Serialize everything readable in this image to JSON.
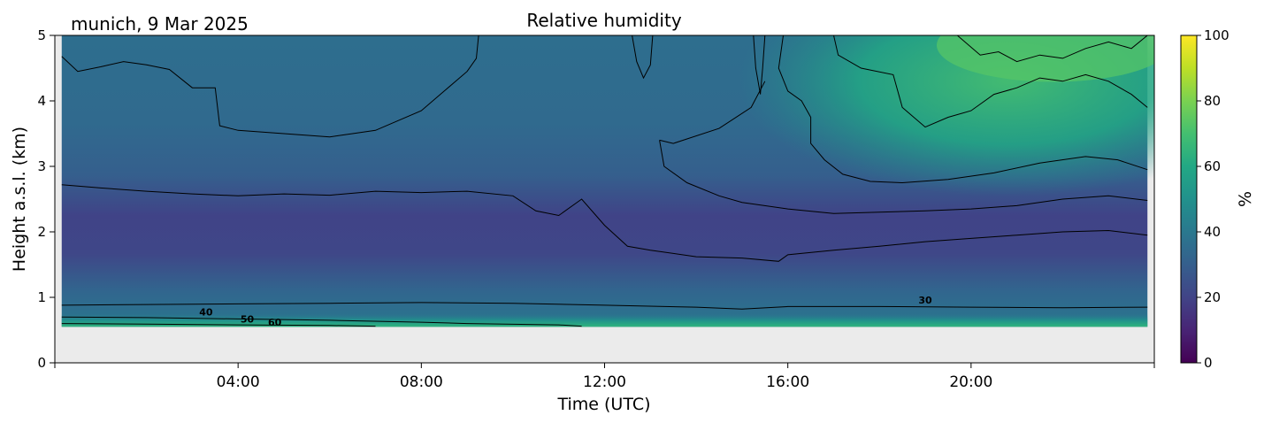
{
  "chart_data": {
    "type": "heatmap",
    "title": "Relative humidity",
    "subtitle": "munich, 9 Mar 2025",
    "xlabel": "Time (UTC)",
    "ylabel": "Height a.s.l. (km)",
    "colorbar_label": "%",
    "colormap": "viridis",
    "xlim_hours": [
      0,
      24
    ],
    "ylim_km": [
      0,
      5
    ],
    "clim": [
      0,
      100
    ],
    "x_ticks": [
      {
        "hour": 4,
        "label": "04:00"
      },
      {
        "hour": 8,
        "label": "08:00"
      },
      {
        "hour": 12,
        "label": "12:00"
      },
      {
        "hour": 16,
        "label": "16:00"
      },
      {
        "hour": 20,
        "label": "20:00"
      }
    ],
    "y_ticks": [
      {
        "value": 0,
        "label": "0"
      },
      {
        "value": 1,
        "label": "1"
      },
      {
        "value": 2,
        "label": "2"
      },
      {
        "value": 3,
        "label": "3"
      },
      {
        "value": 4,
        "label": "4"
      },
      {
        "value": 5,
        "label": "5"
      }
    ],
    "colorbar_ticks": [
      {
        "value": 0,
        "label": "0"
      },
      {
        "value": 20,
        "label": "20"
      },
      {
        "value": 40,
        "label": "40"
      },
      {
        "value": 60,
        "label": "60"
      },
      {
        "value": 80,
        "label": "80"
      },
      {
        "value": 100,
        "label": "100"
      }
    ],
    "data_start_km": 0.55,
    "data_hours": [
      0.15,
      23.85
    ],
    "no_data_color": "#ebebeb",
    "contour_labels": [
      {
        "text": "40",
        "hour": 3.3,
        "km": 0.78
      },
      {
        "text": "50",
        "hour": 4.2,
        "km": 0.67
      },
      {
        "text": "60",
        "hour": 4.8,
        "km": 0.62
      },
      {
        "text": "30",
        "hour": 19.0,
        "km": 0.96
      }
    ],
    "contours": [
      {
        "level": 60,
        "points": [
          [
            0.15,
            0.6
          ],
          [
            2,
            0.59
          ],
          [
            4,
            0.58
          ],
          [
            6,
            0.57
          ],
          [
            7,
            0.56
          ]
        ]
      },
      {
        "level": 50,
        "points": [
          [
            0.15,
            0.7
          ],
          [
            2,
            0.69
          ],
          [
            4,
            0.67
          ],
          [
            6,
            0.65
          ],
          [
            8,
            0.62
          ],
          [
            9,
            0.6
          ],
          [
            11,
            0.58
          ],
          [
            11.5,
            0.56
          ]
        ]
      },
      {
        "level": 40,
        "points": [
          [
            0.15,
            0.88
          ],
          [
            2,
            0.89
          ],
          [
            4,
            0.9
          ],
          [
            6,
            0.91
          ],
          [
            8,
            0.92
          ],
          [
            10,
            0.91
          ],
          [
            12,
            0.88
          ],
          [
            14,
            0.85
          ],
          [
            15,
            0.82
          ],
          [
            16,
            0.86
          ],
          [
            18,
            0.86
          ],
          [
            20,
            0.85
          ],
          [
            22,
            0.84
          ],
          [
            23.85,
            0.85
          ]
        ]
      },
      {
        "level": 30,
        "points": [
          [
            0.15,
            2.72
          ],
          [
            1,
            2.67
          ],
          [
            2,
            2.62
          ],
          [
            3,
            2.58
          ],
          [
            4,
            2.55
          ],
          [
            5,
            2.58
          ],
          [
            6,
            2.56
          ],
          [
            7,
            2.62
          ],
          [
            8,
            2.6
          ],
          [
            9,
            2.62
          ],
          [
            10,
            2.55
          ],
          [
            10.5,
            2.32
          ],
          [
            11,
            2.25
          ],
          [
            11.5,
            2.5
          ],
          [
            12,
            2.1
          ],
          [
            12.5,
            1.78
          ],
          [
            13,
            1.72
          ],
          [
            14,
            1.62
          ],
          [
            15,
            1.6
          ],
          [
            15.8,
            1.55
          ],
          [
            16,
            1.65
          ],
          [
            17,
            1.72
          ],
          [
            18,
            1.78
          ],
          [
            19,
            1.85
          ],
          [
            20,
            1.9
          ],
          [
            21,
            1.95
          ],
          [
            22,
            2.0
          ],
          [
            23,
            2.02
          ],
          [
            23.85,
            1.95
          ]
        ]
      },
      {
        "level": 40,
        "points": [
          [
            13.2,
            3.4
          ],
          [
            13.5,
            3.35
          ],
          [
            14.5,
            3.58
          ],
          [
            15.2,
            3.9
          ],
          [
            15.5,
            4.3
          ]
        ]
      },
      {
        "level": 40,
        "points": [
          [
            13.2,
            3.4
          ],
          [
            13.3,
            3.0
          ],
          [
            13.8,
            2.75
          ],
          [
            14.5,
            2.55
          ],
          [
            15,
            2.45
          ],
          [
            16,
            2.35
          ],
          [
            17,
            2.28
          ],
          [
            18,
            2.3
          ],
          [
            19,
            2.32
          ],
          [
            20,
            2.35
          ],
          [
            21,
            2.4
          ],
          [
            22,
            2.5
          ],
          [
            23,
            2.55
          ],
          [
            23.85,
            2.48
          ]
        ]
      },
      {
        "level": 40,
        "points": [
          [
            0.15,
            4.68
          ],
          [
            0.5,
            4.45
          ],
          [
            1,
            4.52
          ],
          [
            1.5,
            4.6
          ],
          [
            2,
            4.55
          ],
          [
            2.5,
            4.48
          ],
          [
            3,
            4.2
          ],
          [
            3.5,
            4.2
          ],
          [
            3.6,
            3.62
          ],
          [
            4,
            3.55
          ],
          [
            5,
            3.5
          ],
          [
            6,
            3.45
          ],
          [
            6.5,
            3.5
          ],
          [
            7,
            3.55
          ],
          [
            7.5,
            3.7
          ],
          [
            8,
            3.85
          ],
          [
            8.5,
            4.15
          ],
          [
            9.0,
            4.45
          ],
          [
            9.2,
            4.65
          ],
          [
            9.25,
            5.0
          ]
        ]
      },
      {
        "level": 40,
        "points": [
          [
            12.6,
            5.0
          ],
          [
            12.7,
            4.6
          ],
          [
            12.85,
            4.35
          ],
          [
            13.0,
            4.55
          ],
          [
            13.05,
            5.0
          ]
        ]
      },
      {
        "level": 40,
        "points": [
          [
            15.25,
            5.0
          ],
          [
            15.3,
            4.5
          ],
          [
            15.4,
            4.1
          ],
          [
            15.45,
            4.5
          ],
          [
            15.5,
            5.0
          ]
        ]
      },
      {
        "level": 50,
        "points": [
          [
            15.9,
            5.0
          ],
          [
            15.8,
            4.5
          ],
          [
            16.0,
            4.15
          ],
          [
            16.3,
            4.0
          ],
          [
            16.5,
            3.75
          ],
          [
            16.5,
            3.35
          ],
          [
            16.8,
            3.1
          ],
          [
            17.2,
            2.88
          ],
          [
            17.8,
            2.77
          ],
          [
            18.5,
            2.75
          ],
          [
            19.5,
            2.8
          ],
          [
            20.5,
            2.9
          ],
          [
            21.5,
            3.05
          ],
          [
            22.5,
            3.15
          ],
          [
            23.2,
            3.1
          ],
          [
            23.85,
            2.95
          ]
        ]
      },
      {
        "level": 60,
        "points": [
          [
            17.0,
            5.0
          ],
          [
            17.1,
            4.7
          ],
          [
            17.6,
            4.5
          ],
          [
            18.3,
            4.4
          ],
          [
            18.5,
            3.9
          ],
          [
            19,
            3.6
          ],
          [
            19.5,
            3.75
          ],
          [
            20,
            3.85
          ],
          [
            20.5,
            4.1
          ],
          [
            21,
            4.2
          ],
          [
            21.5,
            4.35
          ],
          [
            22,
            4.3
          ],
          [
            22.5,
            4.4
          ],
          [
            23,
            4.3
          ],
          [
            23.5,
            4.1
          ],
          [
            23.85,
            3.9
          ]
        ]
      },
      {
        "level": 70,
        "points": [
          [
            19.7,
            5.0
          ],
          [
            20.2,
            4.7
          ],
          [
            20.6,
            4.75
          ],
          [
            21.0,
            4.6
          ],
          [
            21.5,
            4.7
          ],
          [
            22.0,
            4.65
          ],
          [
            22.5,
            4.8
          ],
          [
            23.0,
            4.9
          ],
          [
            23.5,
            4.8
          ],
          [
            23.85,
            5.0
          ]
        ]
      }
    ]
  }
}
